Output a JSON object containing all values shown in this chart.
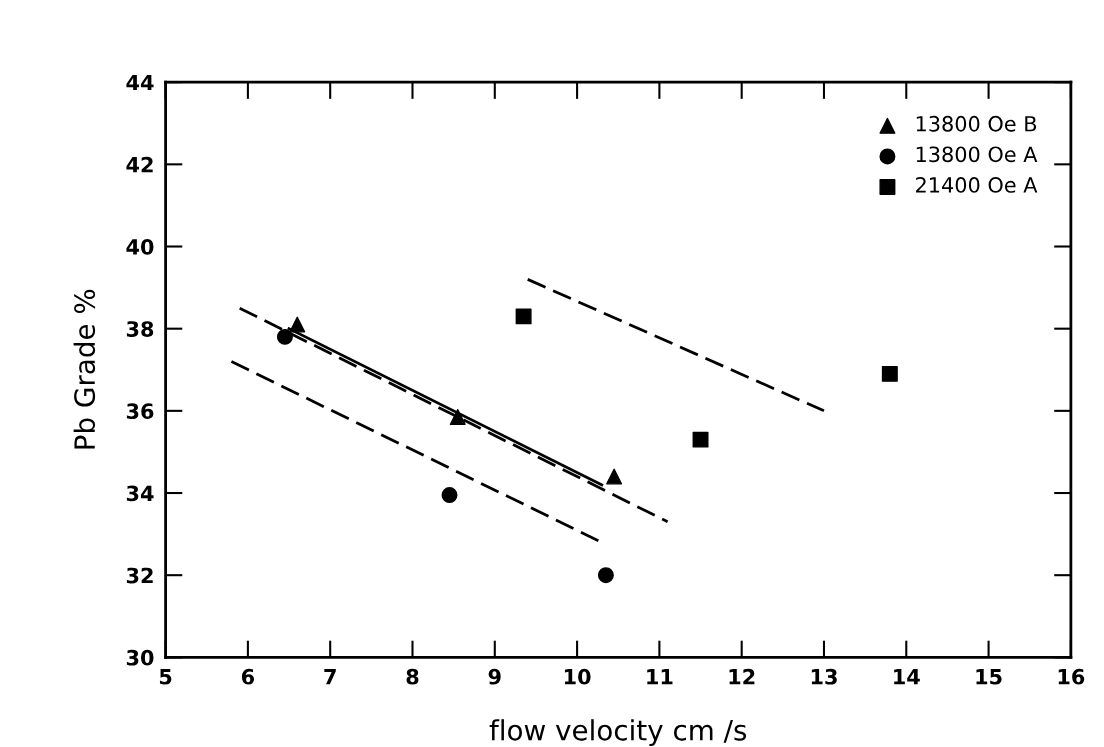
{
  "chart_data": {
    "type": "scatter",
    "xlabel": "flow velocity cm /s",
    "ylabel": "Pb Grade %",
    "xlim": [
      5,
      16
    ],
    "xticks": [
      5,
      6,
      7,
      8,
      9,
      10,
      11,
      12,
      13,
      14,
      15,
      16
    ],
    "ylim": [
      30,
      44
    ],
    "yticks": [
      30,
      32,
      34,
      36,
      38,
      40,
      42,
      44
    ],
    "grid": false,
    "legend": "top right",
    "series": [
      {
        "name": "13800 Oe B",
        "marker": "triangle",
        "color": "#000000",
        "x": [
          6.6,
          8.55,
          10.45
        ],
        "values": [
          38.1,
          35.85,
          34.4
        ]
      },
      {
        "name": "13800 Oe A",
        "marker": "circle",
        "color": "#000000",
        "x": [
          6.45,
          8.45,
          10.35
        ],
        "values": [
          37.8,
          33.95,
          32.0
        ]
      },
      {
        "name": "21400 Oe A",
        "marker": "square",
        "color": "#000000",
        "x": [
          9.35,
          11.5,
          13.8
        ],
        "values": [
          38.3,
          35.3,
          36.9
        ]
      },
      {
        "type": "line",
        "line_style": "solid",
        "marker": "none",
        "color": "#000000",
        "x": [
          6.5,
          10.3
        ],
        "values": [
          38.0,
          34.2
        ]
      },
      {
        "type": "line",
        "line_style": "dashed",
        "marker": "none",
        "color": "#000000",
        "x": [
          5.9,
          11.1
        ],
        "values": [
          38.5,
          33.3
        ]
      },
      {
        "type": "line",
        "line_style": "dashed",
        "marker": "none",
        "color": "#000000",
        "x": [
          5.8,
          10.3
        ],
        "values": [
          37.2,
          32.8
        ]
      },
      {
        "type": "line",
        "line_style": "dashed",
        "marker": "none",
        "color": "#000000",
        "x": [
          9.4,
          13.0
        ],
        "values": [
          39.2,
          36.0
        ]
      }
    ]
  }
}
